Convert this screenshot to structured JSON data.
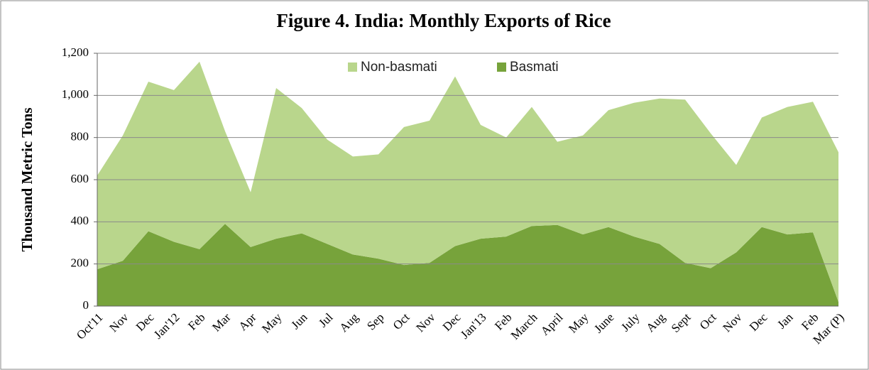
{
  "chart_data": {
    "type": "stacked_area",
    "title": "Figure 4. India: Monthly Exports of Rice",
    "y_label": "Thousand Metric Tons",
    "categories": [
      "Oct'11",
      "Nov",
      "Dec",
      "Jan'12",
      "Feb",
      "Mar",
      "Apr",
      "May",
      "Jun",
      "Jul",
      "Aug",
      "Sep",
      "Oct",
      "Nov",
      "Dec",
      "Jan'13",
      "Feb",
      "March",
      "April",
      "May",
      "June",
      "July",
      "Aug",
      "Sept",
      "Oct",
      "Nov",
      "Dec",
      "Jan",
      "Feb",
      "Mar (P)"
    ],
    "series": [
      {
        "name": "Basmati",
        "color": "#77a33b",
        "values": [
          175,
          215,
          355,
          305,
          270,
          390,
          280,
          320,
          345,
          295,
          245,
          225,
          195,
          205,
          285,
          320,
          330,
          380,
          385,
          340,
          375,
          330,
          295,
          205,
          180,
          255,
          375,
          340,
          350,
          20
        ]
      },
      {
        "name": "Non-basmati",
        "color": "#b9d68c",
        "values": [
          445,
          595,
          710,
          720,
          890,
          440,
          260,
          715,
          595,
          495,
          465,
          495,
          655,
          675,
          805,
          540,
          470,
          565,
          395,
          470,
          555,
          635,
          690,
          775,
          640,
          415,
          520,
          605,
          620,
          710
        ]
      }
    ],
    "ylim": [
      0,
      1200
    ],
    "yticks": [
      0,
      200,
      400,
      600,
      800,
      {
        "value": 1000,
        "label": "1,000"
      },
      {
        "value": 1200,
        "label": "1,200"
      }
    ],
    "grid": true,
    "legend": "top"
  }
}
